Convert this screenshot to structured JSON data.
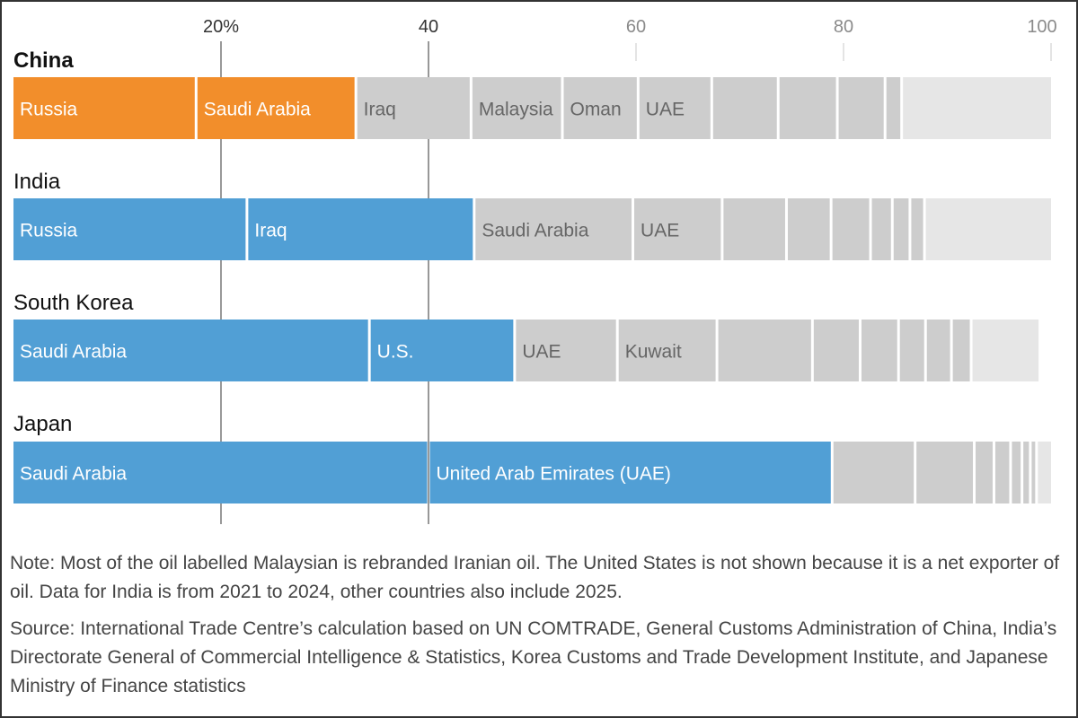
{
  "chart_data": {
    "type": "bar",
    "stacked": true,
    "orientation": "horizontal",
    "xlim": [
      0,
      100
    ],
    "x_ticks": [
      {
        "value": 20,
        "label": "20%"
      },
      {
        "value": 40,
        "label": "40"
      },
      {
        "value": 60,
        "label": "60"
      },
      {
        "value": 80,
        "label": "80"
      },
      {
        "value": 100,
        "label": "100"
      }
    ],
    "colors": {
      "china_highlight": "#f28e2b",
      "other_highlight": "#519fd5",
      "other_supplier": "#cdcdcd",
      "remainder": "#e6e6e6",
      "reference_line": "#555555"
    },
    "categories": [
      {
        "name": "China",
        "emphasis": true,
        "segments": [
          {
            "label": "Russia",
            "value": 17.6,
            "group": "highlight"
          },
          {
            "label": "Saudi Arabia",
            "value": 15.4,
            "group": "highlight"
          },
          {
            "label": "Iraq",
            "value": 11.1,
            "group": "other"
          },
          {
            "label": "Malaysia",
            "value": 8.8,
            "group": "other"
          },
          {
            "label": "Oman",
            "value": 7.3,
            "group": "other"
          },
          {
            "label": "UAE",
            "value": 7.1,
            "group": "other"
          },
          {
            "label": "",
            "value": 6.4,
            "group": "other"
          },
          {
            "label": "",
            "value": 5.7,
            "group": "other"
          },
          {
            "label": "",
            "value": 4.6,
            "group": "other"
          },
          {
            "label": "",
            "value": 1.6,
            "group": "other"
          },
          {
            "label": "",
            "value": 14.4,
            "group": "remainder"
          }
        ]
      },
      {
        "name": "India",
        "emphasis": false,
        "segments": [
          {
            "label": "Russia",
            "value": 22.5,
            "group": "highlight"
          },
          {
            "label": "Iraq",
            "value": 21.9,
            "group": "highlight"
          },
          {
            "label": "Saudi Arabia",
            "value": 15.3,
            "group": "other"
          },
          {
            "label": "UAE",
            "value": 8.6,
            "group": "other"
          },
          {
            "label": "",
            "value": 6.2,
            "group": "other"
          },
          {
            "label": "",
            "value": 4.3,
            "group": "other"
          },
          {
            "label": "",
            "value": 3.8,
            "group": "other"
          },
          {
            "label": "",
            "value": 2.1,
            "group": "other"
          },
          {
            "label": "",
            "value": 1.7,
            "group": "other"
          },
          {
            "label": "",
            "value": 1.4,
            "group": "other"
          },
          {
            "label": "",
            "value": 12.2,
            "group": "remainder"
          }
        ]
      },
      {
        "name": "South Korea",
        "emphasis": false,
        "segments": [
          {
            "label": "Saudi Arabia",
            "value": 34.3,
            "group": "highlight"
          },
          {
            "label": "U.S.",
            "value": 14.0,
            "group": "highlight"
          },
          {
            "label": "UAE",
            "value": 9.9,
            "group": "other"
          },
          {
            "label": "Kuwait",
            "value": 9.6,
            "group": "other"
          },
          {
            "label": "",
            "value": 9.2,
            "group": "other"
          },
          {
            "label": "",
            "value": 4.6,
            "group": "other"
          },
          {
            "label": "",
            "value": 3.7,
            "group": "other"
          },
          {
            "label": "",
            "value": 2.6,
            "group": "other"
          },
          {
            "label": "",
            "value": 2.5,
            "group": "other"
          },
          {
            "label": "",
            "value": 1.9,
            "group": "other"
          },
          {
            "label": "",
            "value": 6.5,
            "group": "remainder"
          }
        ]
      },
      {
        "name": "Japan",
        "emphasis": false,
        "segments": [
          {
            "label": "Saudi Arabia",
            "value": 40.0,
            "group": "highlight"
          },
          {
            "label": "United Arab Emirates (UAE)",
            "value": 38.9,
            "group": "highlight"
          },
          {
            "label": "",
            "value": 8.0,
            "group": "other"
          },
          {
            "label": "",
            "value": 5.7,
            "group": "other"
          },
          {
            "label": "",
            "value": 1.9,
            "group": "other"
          },
          {
            "label": "",
            "value": 1.6,
            "group": "other"
          },
          {
            "label": "",
            "value": 1.1,
            "group": "other"
          },
          {
            "label": "",
            "value": 0.8,
            "group": "other"
          },
          {
            "label": "",
            "value": 0.6,
            "group": "other"
          },
          {
            "label": "",
            "value": 1.4,
            "group": "remainder"
          }
        ]
      }
    ]
  },
  "notes": {
    "note": "Note: Most of the oil labelled Malaysian is rebranded Iranian oil. The United States is not shown because it is a net exporter of oil. Data for India is from 2021 to 2024, other countries also include 2025.",
    "source": "Source: International Trade Centre’s calculation based on UN COMTRADE, General Customs Administration of China, India’s Directorate General of Commercial Intelligence & Statistics, Korea Customs and Trade Development Institute, and Japanese Ministry of Finance statistics"
  }
}
